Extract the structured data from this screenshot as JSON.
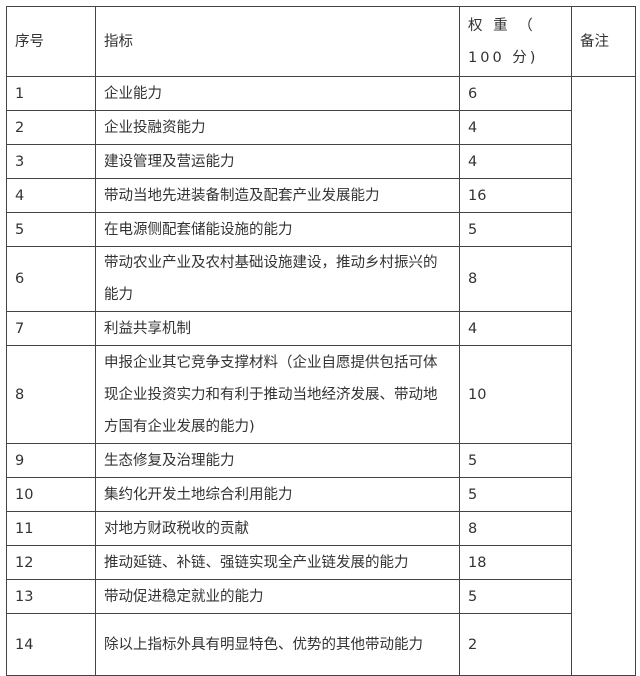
{
  "table": {
    "headers": [
      "序号",
      "指标",
      "权 重 （ 100 分)",
      "备注"
    ],
    "rows": [
      {
        "no": "1",
        "indicator": "企业能力",
        "weight": "6"
      },
      {
        "no": "2",
        "indicator": "企业投融资能力",
        "weight": "4"
      },
      {
        "no": "3",
        "indicator": "建设管理及营运能力",
        "weight": "4"
      },
      {
        "no": "4",
        "indicator": "带动当地先进装备制造及配套产业发展能力",
        "weight": "16"
      },
      {
        "no": "5",
        "indicator": "在电源侧配套储能设施的能力",
        "weight": "5"
      },
      {
        "no": "6",
        "indicator": "带动农业产业及农村基础设施建设，推动乡村振兴的能力",
        "weight": "8"
      },
      {
        "no": "7",
        "indicator": "利益共享机制",
        "weight": "4"
      },
      {
        "no": "8",
        "indicator": "申报企业其它竞争支撑材料（企业自愿提供包括可体现企业投资实力和有利于推动当地经济发展、带动地方国有企业发展的能力)",
        "weight": "10"
      },
      {
        "no": "9",
        "indicator": "生态修复及治理能力",
        "weight": "5"
      },
      {
        "no": "10",
        "indicator": "集约化开发土地综合利用能力",
        "weight": "5"
      },
      {
        "no": "11",
        "indicator": "对地方财政税收的贡献",
        "weight": "8"
      },
      {
        "no": "12",
        "indicator": "推动延链、补链、强链实现全产业链发展的能力",
        "weight": "18"
      },
      {
        "no": "13",
        "indicator": "带动促进稳定就业的能力",
        "weight": "5"
      },
      {
        "no": "14",
        "indicator": "除以上指标外具有明显特色、优势的其他带动能力",
        "weight": "2"
      }
    ]
  }
}
